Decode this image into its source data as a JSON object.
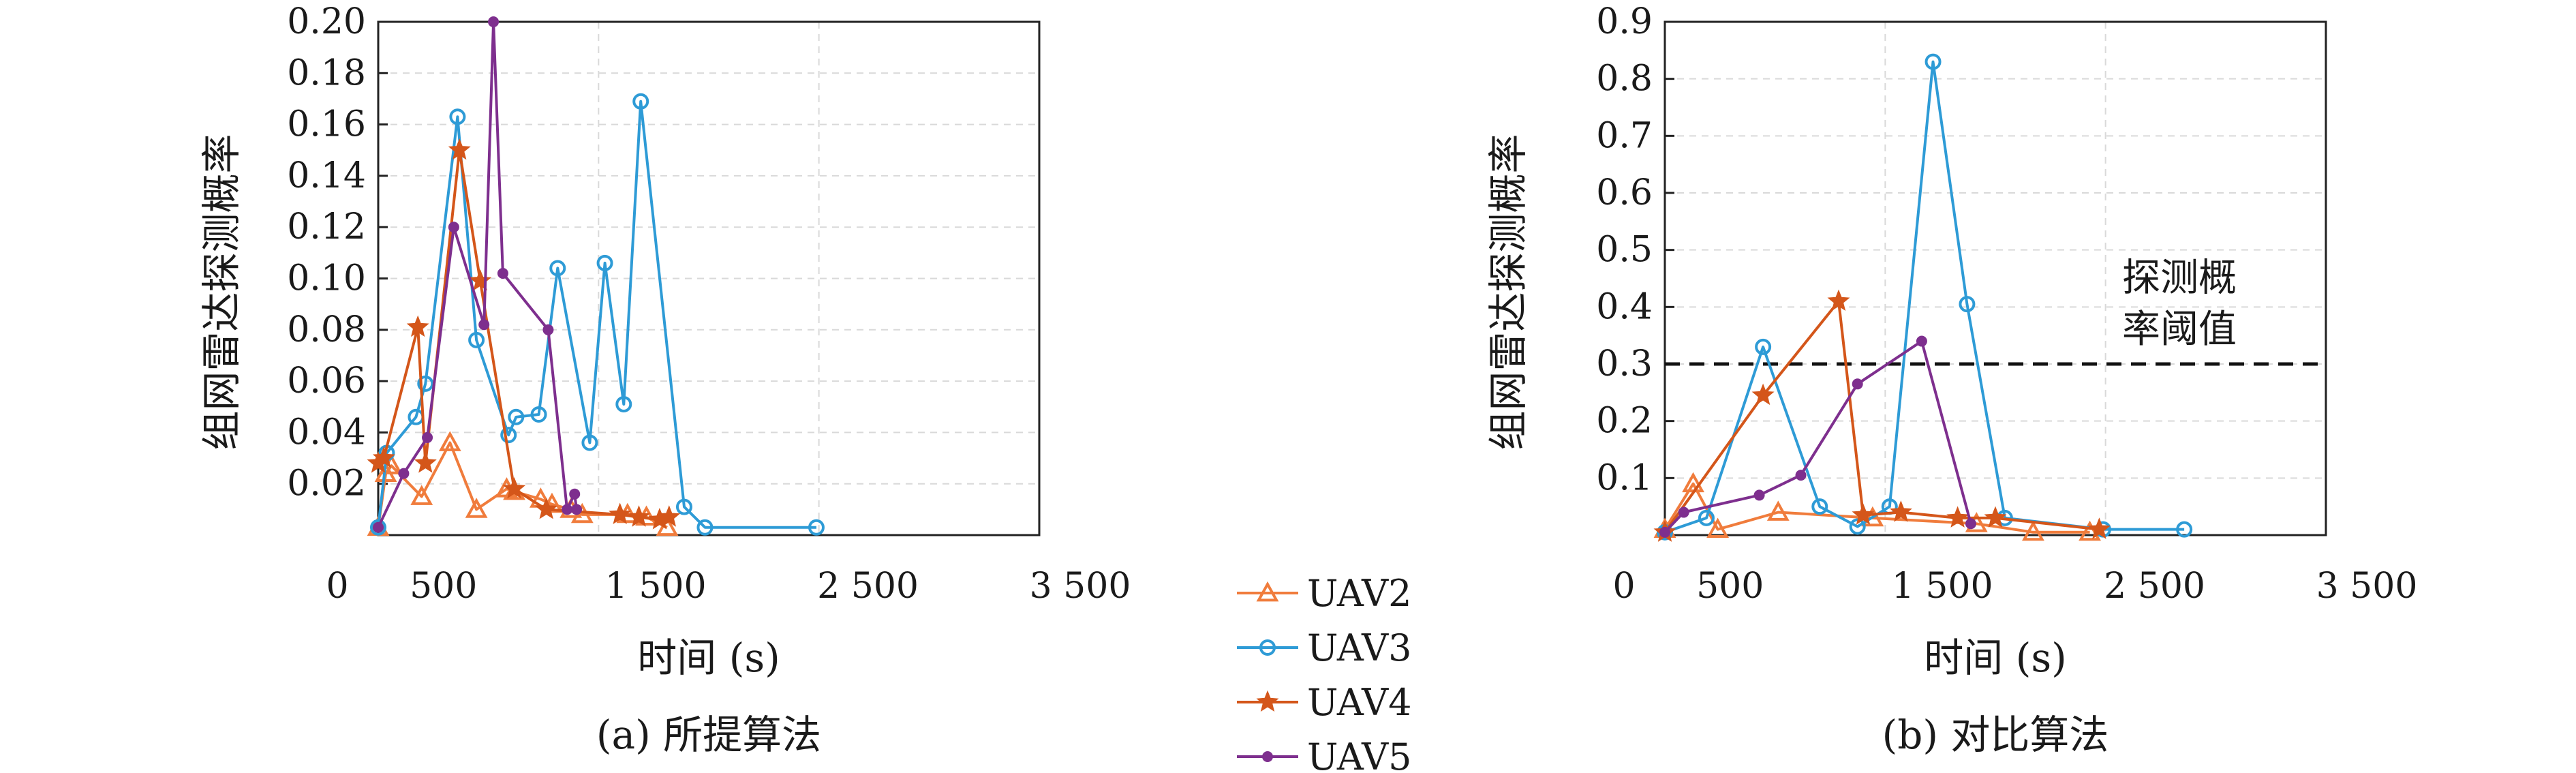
{
  "colors": {
    "UAV2": "#F07C3C",
    "UAV3": "#2E9BD6",
    "UAV4": "#D4561A",
    "UAV5": "#7E2F8E",
    "UAV5_alt": "#4D4D4D",
    "grid": "#d9d9d9",
    "axis": "#222222",
    "threshold": "#111111"
  },
  "legend": {
    "items": [
      {
        "label": "UAV2",
        "marker": "triangle",
        "color": "#F07C3C"
      },
      {
        "label": "UAV3",
        "marker": "circle",
        "color": "#2E9BD6"
      },
      {
        "label": "UAV4",
        "marker": "star",
        "color": "#D4561A"
      },
      {
        "label": "UAV5",
        "marker": "dot",
        "color": "#7E2F8E"
      }
    ]
  },
  "chart_data": [
    {
      "type": "line",
      "caption": "(a) 所提算法",
      "xlabel": "时间 (s)",
      "ylabel": "组网雷达探测概率",
      "xlim": [
        0,
        3500
      ],
      "ylim": [
        0,
        0.2
      ],
      "xticks": [
        0,
        500,
        1500,
        2500,
        3500
      ],
      "xtick_labels": [
        "0",
        "500",
        "1 500",
        "2 500",
        "3 500"
      ],
      "yticks": [
        0.02,
        0.04,
        0.06,
        0.08,
        0.1,
        0.12,
        0.14,
        0.16,
        0.18,
        0.2
      ],
      "ytick_labels": [
        "0.02",
        "0.04",
        "0.06",
        "0.08",
        "0.10",
        "0.12",
        "0.14",
        "0.16",
        "0.18",
        "0.20"
      ],
      "grid": true,
      "series": [
        {
          "name": "UAV2",
          "marker": "triangle",
          "color": "#F07C3C",
          "x": [
            0,
            40,
            70,
            230,
            380,
            520,
            680,
            720,
            860,
            920,
            1020,
            1080,
            1320,
            1420,
            1530
          ],
          "y": [
            0.003,
            0.024,
            0.027,
            0.015,
            0.036,
            0.01,
            0.018,
            0.017,
            0.014,
            0.012,
            0.01,
            0.008,
            0.008,
            0.007,
            0.003
          ]
        },
        {
          "name": "UAV3",
          "marker": "circle",
          "color": "#2E9BD6",
          "x": [
            0,
            45,
            200,
            250,
            420,
            520,
            690,
            730,
            850,
            950,
            1120,
            1200,
            1300,
            1390,
            1620,
            1730,
            2320
          ],
          "y": [
            0.003,
            0.032,
            0.046,
            0.059,
            0.163,
            0.076,
            0.039,
            0.046,
            0.047,
            0.104,
            0.036,
            0.106,
            0.051,
            0.169,
            0.011,
            0.003,
            0.003
          ]
        },
        {
          "name": "UAV4",
          "marker": "star",
          "color": "#D4561A",
          "x": [
            0,
            30,
            210,
            250,
            430,
            540,
            720,
            890,
            1280,
            1380,
            1490,
            1540
          ],
          "y": [
            0.028,
            0.03,
            0.081,
            0.028,
            0.15,
            0.099,
            0.018,
            0.01,
            0.008,
            0.007,
            0.006,
            0.007
          ]
        },
        {
          "name": "UAV5",
          "marker": "dot",
          "color": "#7E2F8E",
          "x": [
            0,
            135,
            260,
            400,
            560,
            610,
            660,
            900,
            1000,
            1040,
            1050
          ],
          "y": [
            0.003,
            0.024,
            0.038,
            0.12,
            0.082,
            0.2,
            0.102,
            0.08,
            0.01,
            0.016,
            0.01
          ]
        }
      ]
    },
    {
      "type": "line",
      "caption": "(b) 对比算法",
      "xlabel": "时间 (s)",
      "ylabel": "组网雷达探测概率",
      "xlim": [
        0,
        3500
      ],
      "ylim": [
        0,
        0.9
      ],
      "xticks": [
        0,
        500,
        1500,
        2500,
        3500
      ],
      "xtick_labels": [
        "0",
        "500",
        "1 500",
        "2 500",
        "3 500"
      ],
      "yticks": [
        0.1,
        0.2,
        0.3,
        0.4,
        0.5,
        0.6,
        0.7,
        0.8,
        0.9
      ],
      "ytick_labels": [
        "0.1",
        "0.2",
        "0.3",
        "0.4",
        "0.5",
        "0.6",
        "0.7",
        "0.8",
        "0.9"
      ],
      "grid": true,
      "threshold": {
        "y": 0.3,
        "label_line1": "探测概",
        "label_line2": "率阈值"
      },
      "series": [
        {
          "name": "UAV2",
          "marker": "triangle",
          "color": "#F07C3C",
          "x": [
            0,
            150,
            280,
            600,
            1100,
            1650,
            1950,
            2250
          ],
          "y": [
            0.01,
            0.09,
            0.01,
            0.04,
            0.03,
            0.02,
            0.005,
            0.005
          ]
        },
        {
          "name": "UAV3",
          "marker": "circle",
          "color": "#2E9BD6",
          "x": [
            0,
            220,
            520,
            820,
            1020,
            1190,
            1420,
            1600,
            1800,
            2320,
            2750
          ],
          "y": [
            0.005,
            0.03,
            0.33,
            0.05,
            0.015,
            0.05,
            0.83,
            0.405,
            0.03,
            0.01,
            0.01
          ]
        },
        {
          "name": "UAV4",
          "marker": "star",
          "color": "#D4561A",
          "x": [
            0,
            520,
            920,
            1050,
            1250,
            1550,
            1750,
            2300
          ],
          "y": [
            0.005,
            0.245,
            0.41,
            0.035,
            0.04,
            0.03,
            0.03,
            0.01
          ]
        },
        {
          "name": "UAV5",
          "marker": "dot",
          "color": "#7E2F8E",
          "x": [
            0,
            100,
            500,
            720,
            1020,
            1360,
            1620
          ],
          "y": [
            0.005,
            0.04,
            0.07,
            0.105,
            0.265,
            0.34,
            0.02
          ]
        }
      ]
    }
  ]
}
